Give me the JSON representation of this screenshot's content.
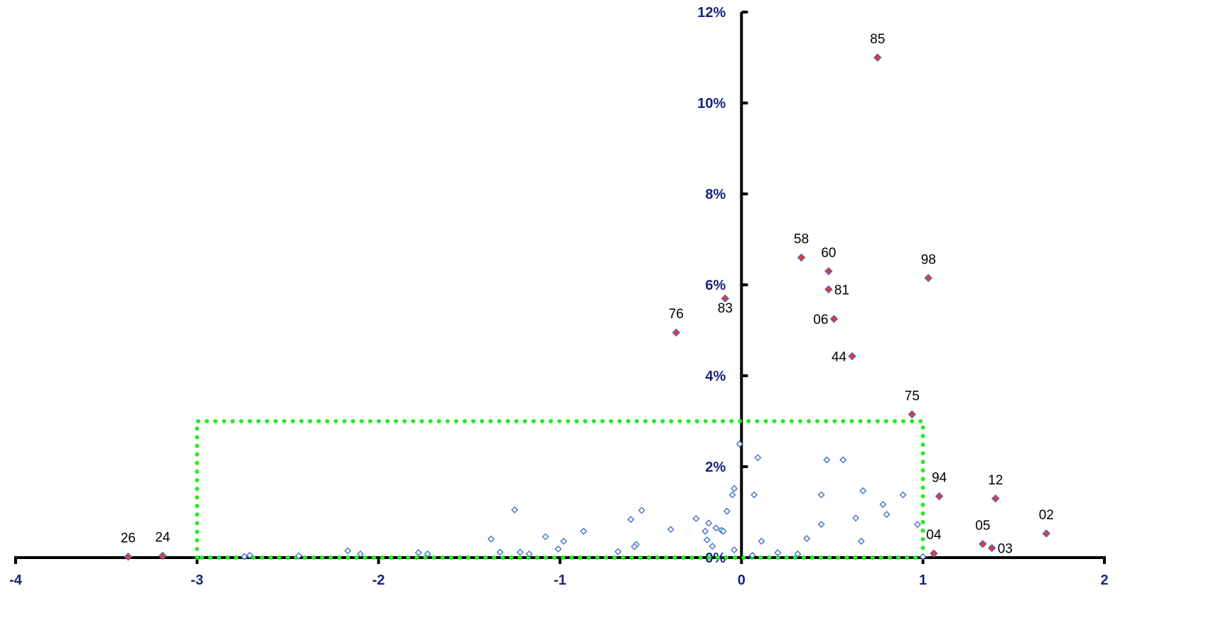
{
  "colors": {
    "axis": "#000000",
    "tick_text": "#1a237e",
    "labeled_point_fill": "#e53935",
    "labeled_point_stroke": "#4472c4",
    "unlabeled_point_stroke": "#4472c4",
    "region_box": "#22ee22"
  },
  "chart_data": {
    "type": "scatter",
    "xlim": [
      -4,
      2
    ],
    "ylim": [
      0,
      0.12
    ],
    "x_ticks": [
      {
        "value": -4,
        "label": "-4"
      },
      {
        "value": -3,
        "label": "-3"
      },
      {
        "value": -2,
        "label": "-2"
      },
      {
        "value": -1,
        "label": "-1"
      },
      {
        "value": 0,
        "label": "0"
      },
      {
        "value": 1,
        "label": "1"
      },
      {
        "value": 2,
        "label": "2"
      }
    ],
    "y_ticks": [
      {
        "value": 0,
        "label": "0%"
      },
      {
        "value": 0.02,
        "label": "2%"
      },
      {
        "value": 0.04,
        "label": "4%"
      },
      {
        "value": 0.06,
        "label": "6%"
      },
      {
        "value": 0.08,
        "label": "8%"
      },
      {
        "value": 0.1,
        "label": "10%"
      },
      {
        "value": 0.12,
        "label": "12%"
      }
    ],
    "grid": false,
    "region_box": {
      "x0": -3,
      "x1": 1,
      "y0": 0,
      "y1": 0.03
    },
    "labeled_points": [
      {
        "label": "85",
        "x": 0.75,
        "y": 0.11,
        "label_pos": "above"
      },
      {
        "label": "58",
        "x": 0.33,
        "y": 0.066,
        "label_pos": "above"
      },
      {
        "label": "60",
        "x": 0.48,
        "y": 0.063,
        "label_pos": "above"
      },
      {
        "label": "98",
        "x": 1.03,
        "y": 0.0615,
        "label_pos": "above"
      },
      {
        "label": "81",
        "x": 0.48,
        "y": 0.059,
        "label_pos": "right"
      },
      {
        "label": "83",
        "x": -0.09,
        "y": 0.057,
        "label_pos": "below"
      },
      {
        "label": "06",
        "x": 0.51,
        "y": 0.0525,
        "label_pos": "left"
      },
      {
        "label": "76",
        "x": -0.36,
        "y": 0.0495,
        "label_pos": "above"
      },
      {
        "label": "44",
        "x": 0.61,
        "y": 0.0443,
        "label_pos": "left"
      },
      {
        "label": "75",
        "x": 0.94,
        "y": 0.0315,
        "label_pos": "above"
      },
      {
        "label": "94",
        "x": 1.09,
        "y": 0.0135,
        "label_pos": "above"
      },
      {
        "label": "12",
        "x": 1.4,
        "y": 0.013,
        "label_pos": "above"
      },
      {
        "label": "02",
        "x": 1.68,
        "y": 0.0053,
        "label_pos": "above"
      },
      {
        "label": "05",
        "x": 1.33,
        "y": 0.003,
        "label_pos": "above"
      },
      {
        "label": "03",
        "x": 1.38,
        "y": 0.0021,
        "label_pos": "right"
      },
      {
        "label": "04",
        "x": 1.06,
        "y": 0.0009,
        "label_pos": "above"
      },
      {
        "label": "26",
        "x": -3.38,
        "y": 0.0002,
        "label_pos": "above"
      },
      {
        "label": "24",
        "x": -3.19,
        "y": 0.0004,
        "label_pos": "above"
      }
    ],
    "unlabeled_points": [
      {
        "x": -0.01,
        "y": 0.025
      },
      {
        "x": 0.09,
        "y": 0.022
      },
      {
        "x": 0.47,
        "y": 0.0215
      },
      {
        "x": 0.56,
        "y": 0.0215
      },
      {
        "x": -0.04,
        "y": 0.0152
      },
      {
        "x": -0.05,
        "y": 0.0138
      },
      {
        "x": 0.07,
        "y": 0.0138
      },
      {
        "x": 0.44,
        "y": 0.0138
      },
      {
        "x": 0.89,
        "y": 0.0138
      },
      {
        "x": 0.67,
        "y": 0.0147
      },
      {
        "x": 0.78,
        "y": 0.0117
      },
      {
        "x": 0.8,
        "y": 0.0095
      },
      {
        "x": -1.25,
        "y": 0.0105
      },
      {
        "x": -0.55,
        "y": 0.0104
      },
      {
        "x": -0.08,
        "y": 0.0102
      },
      {
        "x": -0.61,
        "y": 0.0084
      },
      {
        "x": -0.25,
        "y": 0.0086
      },
      {
        "x": 0.63,
        "y": 0.0087
      },
      {
        "x": -0.18,
        "y": 0.0076
      },
      {
        "x": 0.44,
        "y": 0.0073
      },
      {
        "x": 0.97,
        "y": 0.0073
      },
      {
        "x": -0.14,
        "y": 0.0065
      },
      {
        "x": -0.11,
        "y": 0.006
      },
      {
        "x": -0.2,
        "y": 0.0058
      },
      {
        "x": -0.1,
        "y": 0.0058
      },
      {
        "x": -0.39,
        "y": 0.0062
      },
      {
        "x": -0.87,
        "y": 0.0058
      },
      {
        "x": -1.08,
        "y": 0.0046
      },
      {
        "x": -1.38,
        "y": 0.0041
      },
      {
        "x": -0.19,
        "y": 0.0039
      },
      {
        "x": 0.36,
        "y": 0.0042
      },
      {
        "x": -0.98,
        "y": 0.0036
      },
      {
        "x": 0.11,
        "y": 0.0036
      },
      {
        "x": 0.66,
        "y": 0.0036
      },
      {
        "x": -0.58,
        "y": 0.0029
      },
      {
        "x": -0.59,
        "y": 0.0024
      },
      {
        "x": -0.16,
        "y": 0.0025
      },
      {
        "x": -1.01,
        "y": 0.0019
      },
      {
        "x": -0.04,
        "y": 0.0017
      },
      {
        "x": -2.17,
        "y": 0.0015
      },
      {
        "x": -1.33,
        "y": 0.0012
      },
      {
        "x": -1.22,
        "y": 0.0012
      },
      {
        "x": -0.68,
        "y": 0.0013
      },
      {
        "x": -1.78,
        "y": 0.0011
      },
      {
        "x": 0.2,
        "y": 0.0011
      },
      {
        "x": -2.1,
        "y": 0.0008
      },
      {
        "x": -1.17,
        "y": 0.0008
      },
      {
        "x": -1.73,
        "y": 0.0008
      },
      {
        "x": 0.31,
        "y": 0.0008
      },
      {
        "x": -2.71,
        "y": 0.0005
      },
      {
        "x": -2.44,
        "y": 0.0004
      },
      {
        "x": 0.06,
        "y": 0.0005
      },
      {
        "x": -2.74,
        "y": 0.0002
      },
      {
        "x": 1.0,
        "y": 0.0002
      }
    ]
  }
}
